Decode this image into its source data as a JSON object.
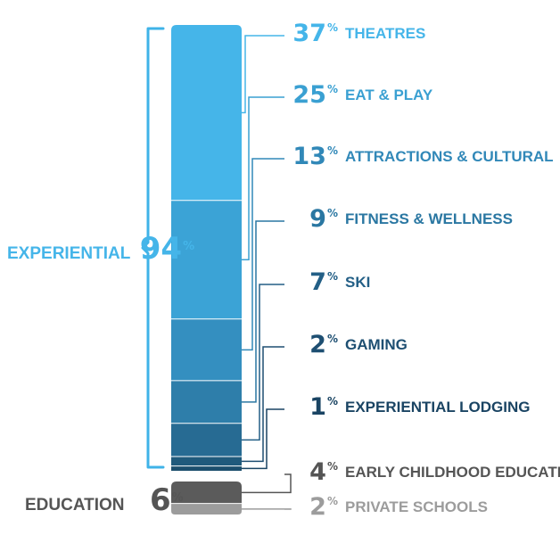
{
  "chart_data": {
    "type": "bar",
    "stacked": true,
    "percent_symbol": "%",
    "groups": [
      {
        "name": "EXPERIENTIAL",
        "total": 94,
        "color": "#3fb3e8",
        "categories": [
          "THEATRES",
          "EAT & PLAY",
          "ATTRACTIONS & CULTURAL",
          "FITNESS & WELLNESS",
          "SKI",
          "GAMING",
          "EXPERIENTIAL LODGING"
        ],
        "values": [
          37,
          25,
          13,
          9,
          7,
          2,
          1
        ],
        "colors": [
          "#45b5e9",
          "#3ba3d6",
          "#348fc0",
          "#2e7eaa",
          "#276b93",
          "#205a7c",
          "#1d4f6d"
        ],
        "label_colors": [
          "#45b5e9",
          "#3aa0d2",
          "#3188b8",
          "#2a77a2",
          "#235f86",
          "#1e4f72",
          "#1a4463"
        ]
      },
      {
        "name": "EDUCATION",
        "total": 6,
        "color": "#555555",
        "categories": [
          "EARLY CHILDHOOD EDUCATION",
          "PRIVATE SCHOOLS"
        ],
        "values": [
          4,
          2
        ],
        "colors": [
          "#5b5b5b",
          "#9c9c9c"
        ],
        "label_colors": [
          "#555555",
          "#9c9c9c"
        ]
      }
    ]
  }
}
